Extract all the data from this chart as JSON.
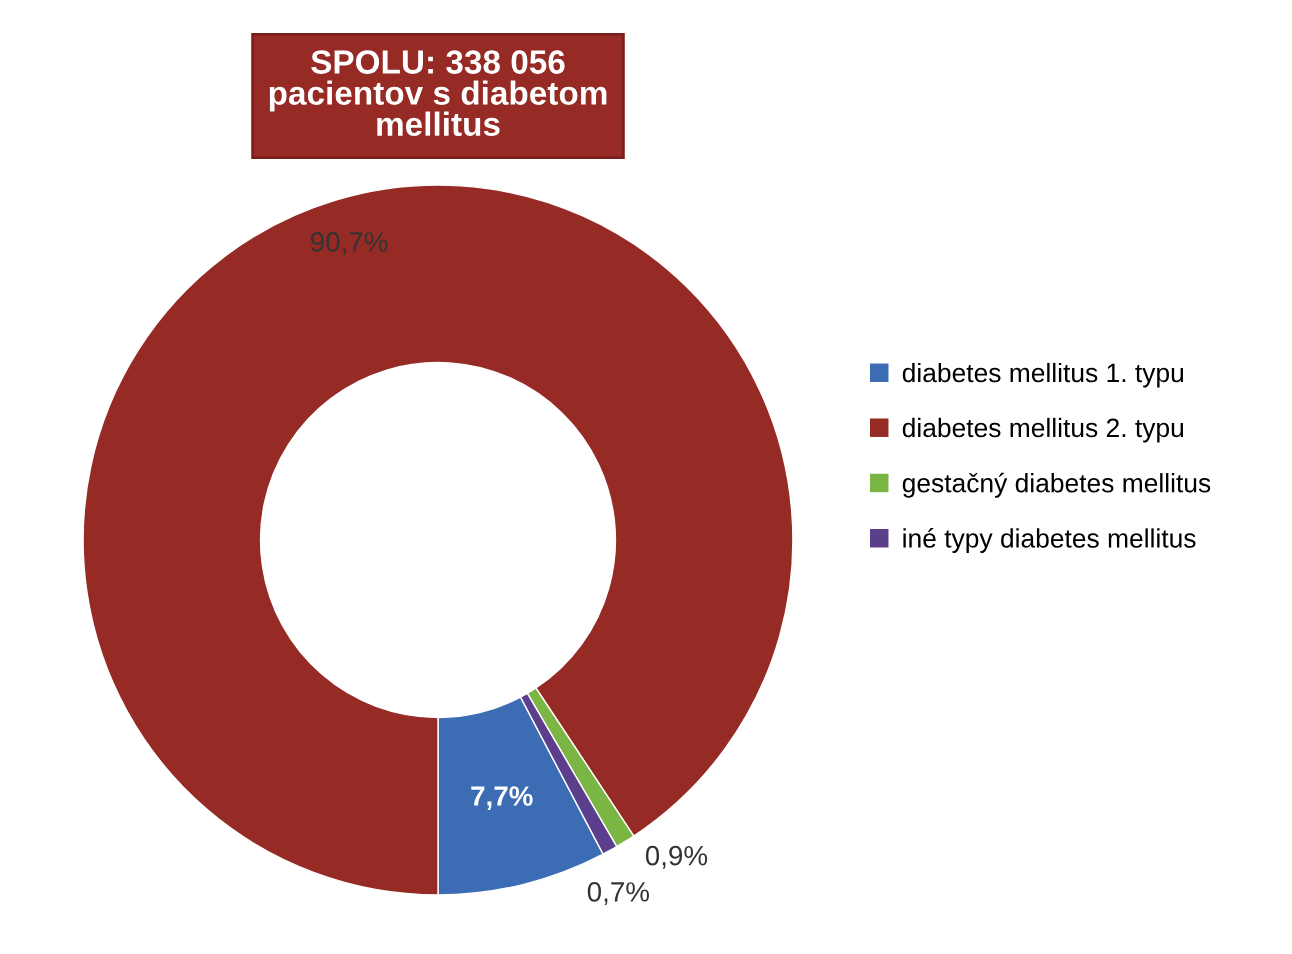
{
  "chart_data": {
    "type": "donut",
    "title": "SPOLU: 338 056\npacientov s diabetom\nmellitus",
    "categories": [
      "diabetes mellitus 1. typu",
      "diabetes mellitus 2. typu",
      "gestačný diabetes mellitus",
      "iné typy diabetes mellitus"
    ],
    "values": [
      7.7,
      90.7,
      0.9,
      0.7
    ],
    "colors": [
      "#3c6db4",
      "#962b26",
      "#7bb544",
      "#5b3f8c"
    ],
    "value_labels": [
      "7,7%",
      "90,7%",
      "0,9%",
      "0,7%"
    ],
    "legend": "right"
  }
}
